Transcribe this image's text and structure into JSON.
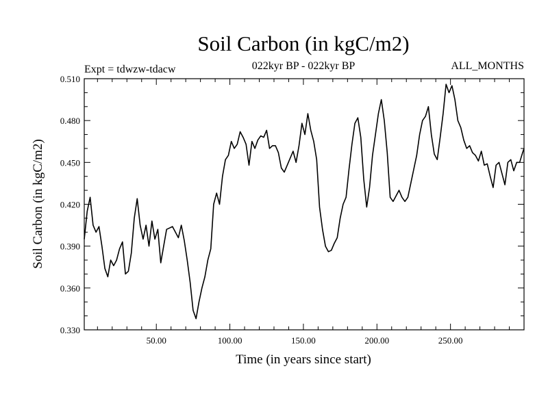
{
  "chart_data": {
    "type": "line",
    "title": "Soil Carbon (in kgC/m2)",
    "subtitle": "022kyr BP - 022kyr BP",
    "experiment": "Expt = tdwzw-tdacw",
    "months": "ALL_MONTHS",
    "xlabel": "Time (in years since start)",
    "ylabel": "Soil Carbon (in kgC/m2)",
    "xlim": [
      1,
      300
    ],
    "ylim": [
      0.33,
      0.51
    ],
    "xticks": [
      50,
      100,
      150,
      200,
      250
    ],
    "xtick_labels": [
      "50.00",
      "100.00",
      "150.00",
      "200.00",
      "250.00"
    ],
    "yticks": [
      0.33,
      0.36,
      0.39,
      0.42,
      0.45,
      0.48,
      0.51
    ],
    "ytick_labels": [
      "0.330",
      "0.360",
      "0.390",
      "0.420",
      "0.450",
      "0.480",
      "0.510"
    ],
    "grid": false,
    "series": [
      {
        "name": "Soil Carbon",
        "color": "#000000",
        "x": [
          1,
          3,
          5,
          7,
          9,
          11,
          13,
          15,
          17,
          19,
          21,
          23,
          25,
          27,
          29,
          31,
          33,
          35,
          37,
          39,
          41,
          43,
          45,
          47,
          49,
          51,
          53,
          55,
          57,
          59,
          61,
          63,
          65,
          67,
          69,
          71,
          73,
          75,
          77,
          79,
          81,
          83,
          85,
          87,
          89,
          91,
          93,
          95,
          97,
          99,
          101,
          103,
          105,
          107,
          109,
          111,
          113,
          115,
          117,
          119,
          121,
          123,
          125,
          127,
          129,
          131,
          133,
          135,
          137,
          139,
          141,
          143,
          145,
          147,
          149,
          151,
          153,
          155,
          157,
          159,
          161,
          163,
          165,
          167,
          169,
          171,
          173,
          175,
          177,
          179,
          181,
          183,
          185,
          187,
          189,
          191,
          193,
          195,
          197,
          199,
          201,
          203,
          205,
          207,
          209,
          211,
          213,
          215,
          217,
          219,
          221,
          223,
          225,
          227,
          229,
          231,
          233,
          235,
          237,
          239,
          241,
          243,
          245,
          247,
          249,
          251,
          253,
          255,
          257,
          259,
          261,
          263,
          265,
          267,
          269,
          271,
          273,
          275,
          277,
          279,
          281,
          283,
          285,
          287,
          289,
          291,
          293,
          295,
          297,
          299,
          300
        ],
        "values": [
          0.395,
          0.415,
          0.425,
          0.405,
          0.4,
          0.404,
          0.39,
          0.374,
          0.368,
          0.38,
          0.376,
          0.38,
          0.388,
          0.393,
          0.37,
          0.372,
          0.385,
          0.41,
          0.424,
          0.405,
          0.395,
          0.405,
          0.39,
          0.408,
          0.395,
          0.402,
          0.378,
          0.39,
          0.402,
          0.403,
          0.404,
          0.4,
          0.396,
          0.405,
          0.394,
          0.38,
          0.364,
          0.344,
          0.338,
          0.35,
          0.36,
          0.368,
          0.38,
          0.388,
          0.42,
          0.428,
          0.42,
          0.44,
          0.452,
          0.455,
          0.465,
          0.46,
          0.463,
          0.472,
          0.468,
          0.463,
          0.448,
          0.465,
          0.46,
          0.466,
          0.469,
          0.468,
          0.473,
          0.46,
          0.462,
          0.462,
          0.457,
          0.446,
          0.443,
          0.448,
          0.453,
          0.458,
          0.45,
          0.462,
          0.478,
          0.47,
          0.485,
          0.473,
          0.465,
          0.452,
          0.418,
          0.402,
          0.39,
          0.386,
          0.387,
          0.392,
          0.396,
          0.41,
          0.42,
          0.425,
          0.445,
          0.463,
          0.478,
          0.482,
          0.468,
          0.438,
          0.418,
          0.432,
          0.455,
          0.47,
          0.485,
          0.495,
          0.48,
          0.457,
          0.425,
          0.422,
          0.426,
          0.43,
          0.425,
          0.422,
          0.425,
          0.435,
          0.445,
          0.455,
          0.47,
          0.48,
          0.483,
          0.49,
          0.47,
          0.456,
          0.452,
          0.468,
          0.485,
          0.506,
          0.5,
          0.505,
          0.495,
          0.48,
          0.475,
          0.466,
          0.46,
          0.462,
          0.457,
          0.455,
          0.451,
          0.458,
          0.448,
          0.449,
          0.44,
          0.432,
          0.448,
          0.45,
          0.442,
          0.434,
          0.45,
          0.452,
          0.444,
          0.45,
          0.45,
          0.457,
          0.46
        ]
      }
    ]
  }
}
